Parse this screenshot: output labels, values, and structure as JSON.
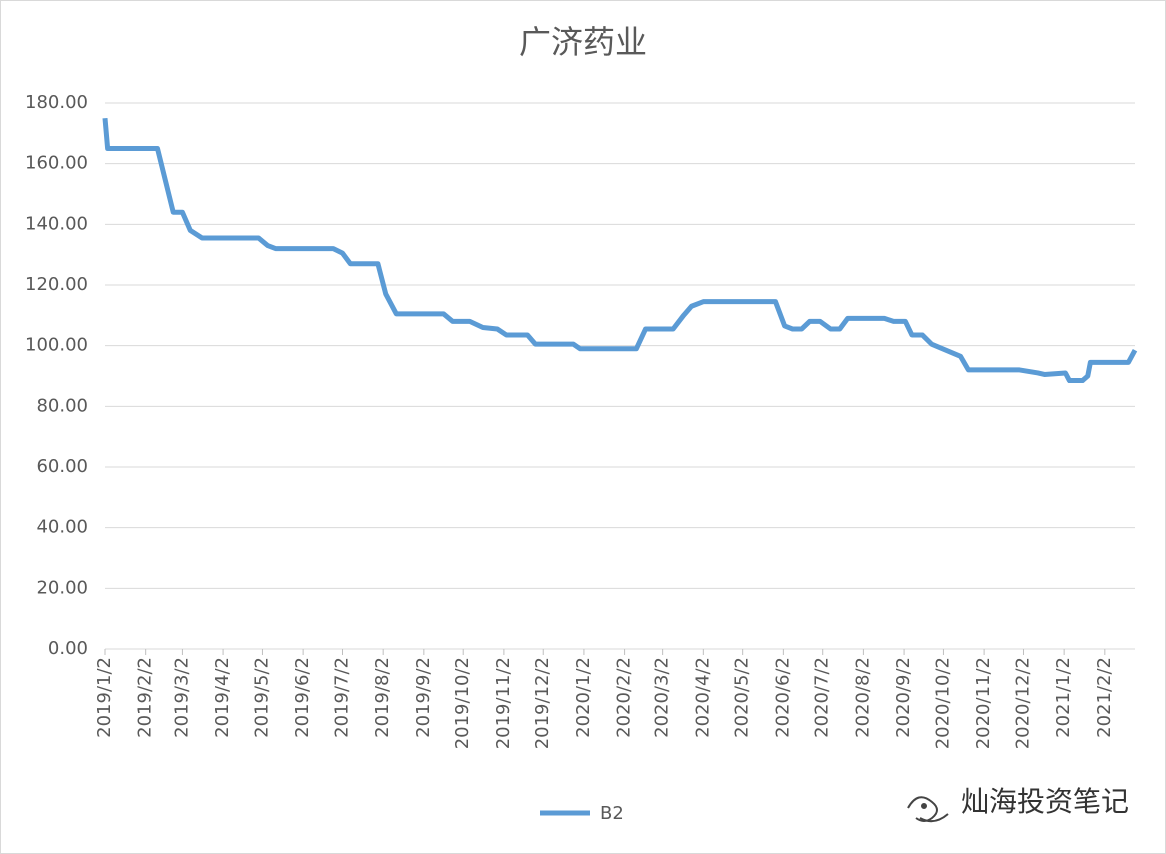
{
  "chart_data": {
    "type": "line",
    "title": "广济药业",
    "watermark": "灿海投资笔记",
    "x": [
      "2019/1/2",
      "2019/1/4",
      "2019/2/11",
      "2019/2/23",
      "2019/3/2",
      "2019/3/8",
      "2019/3/17",
      "2019/4/29",
      "2019/5/6",
      "2019/5/12",
      "2019/6/25",
      "2019/7/2",
      "2019/7/8",
      "2019/7/29",
      "2019/8/4",
      "2019/8/12",
      "2019/9/17",
      "2019/9/24",
      "2019/10/7",
      "2019/10/17",
      "2019/10/28",
      "2019/11/4",
      "2019/11/20",
      "2019/11/26",
      "2019/12/25",
      "2019/12/30",
      "2020/2/11",
      "2020/2/18",
      "2020/3/10",
      "2020/3/18",
      "2020/3/24",
      "2020/4/2",
      "2020/5/27",
      "2020/6/3",
      "2020/6/9",
      "2020/6/16",
      "2020/6/22",
      "2020/6/30",
      "2020/7/8",
      "2020/7/15",
      "2020/7/21",
      "2020/8/18",
      "2020/8/25",
      "2020/9/3",
      "2020/9/8",
      "2020/9/16",
      "2020/9/23",
      "2020/10/15",
      "2020/10/21",
      "2020/11/29",
      "2020/12/13",
      "2020/12/18",
      "2021/1/3",
      "2021/1/6",
      "2021/1/16",
      "2021/1/20",
      "2021/1/22",
      "2021/2/20",
      "2021/2/25"
    ],
    "series": [
      {
        "name": "B2",
        "color": "#5b9bd5",
        "values": [
          175,
          165,
          165,
          144,
          144,
          138,
          135.5,
          135.5,
          133,
          132,
          132,
          130.5,
          127,
          127,
          117,
          110.5,
          110.5,
          108,
          108,
          106,
          105.5,
          103.5,
          103.5,
          100.5,
          100.5,
          99,
          99,
          105.5,
          105.5,
          110,
          113,
          114.5,
          114.5,
          106.5,
          105.5,
          105.5,
          108,
          108,
          105.5,
          105.5,
          109,
          109,
          108,
          108,
          103.5,
          103.5,
          100.5,
          96.5,
          92,
          92,
          91,
          90.5,
          91,
          88.5,
          88.5,
          90,
          94.5,
          94.5,
          98.5
        ]
      }
    ],
    "xlim": [
      "2019/1/2",
      "2021/2/25"
    ],
    "xticks": [
      "2019/1/2",
      "2019/2/2",
      "2019/3/2",
      "2019/4/2",
      "2019/5/2",
      "2019/6/2",
      "2019/7/2",
      "2019/8/2",
      "2019/9/2",
      "2019/10/2",
      "2019/11/2",
      "2019/12/2",
      "2020/1/2",
      "2020/2/2",
      "2020/3/2",
      "2020/4/2",
      "2020/5/2",
      "2020/6/2",
      "2020/7/2",
      "2020/8/2",
      "2020/9/2",
      "2020/10/2",
      "2020/11/2",
      "2020/12/2",
      "2021/1/2",
      "2021/2/2"
    ],
    "ylim": [
      0,
      180
    ],
    "yticks": [
      {
        "value": 0,
        "label": "0.00"
      },
      {
        "value": 20,
        "label": "20.00"
      },
      {
        "value": 40,
        "label": "40.00"
      },
      {
        "value": 60,
        "label": "60.00"
      },
      {
        "value": 80,
        "label": "80.00"
      },
      {
        "value": 100,
        "label": "100.00"
      },
      {
        "value": 120,
        "label": "120.00"
      },
      {
        "value": 140,
        "label": "140.00"
      },
      {
        "value": 160,
        "label": "160.00"
      },
      {
        "value": 180,
        "label": "180.00"
      }
    ],
    "grid": true,
    "legend": "bottom"
  }
}
